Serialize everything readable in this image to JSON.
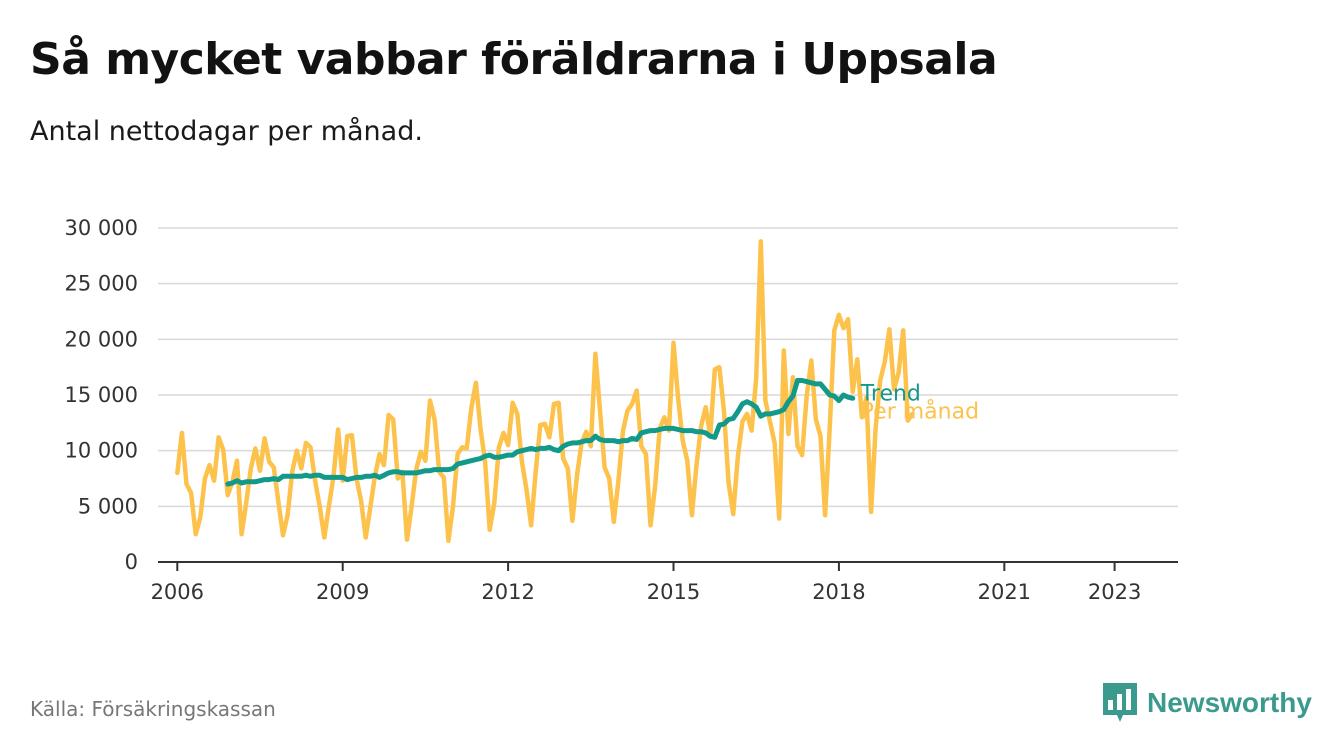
{
  "header": {
    "title": "Så mycket vabbar föräldrarna i Uppsala",
    "subtitle": "Antal nettodagar per månad."
  },
  "footer": {
    "source": "Källa: Försäkringskassan",
    "brand": "Newsworthy",
    "brand_icon": "bar-chart-speech-bubble-icon"
  },
  "colors": {
    "monthly": "#fcc24c",
    "trend": "#13998a",
    "grid": "#d9d9d9",
    "axis": "#333333",
    "brand": "#3b9a8e"
  },
  "chart_data": {
    "type": "line",
    "title": "Så mycket vabbar föräldrarna i Uppsala",
    "subtitle": "Antal nettodagar per månad.",
    "xlabel": "",
    "ylabel": "",
    "x_start": 2006.0,
    "x_step": 0.08333,
    "xlim": [
      2005.65,
      2024.15
    ],
    "ylim": [
      0,
      30000
    ],
    "y_ticks": [
      0,
      5000,
      10000,
      15000,
      20000,
      25000,
      30000
    ],
    "y_tick_labels": [
      "0",
      "5 000",
      "10 000",
      "15 000",
      "20 000",
      "25 000",
      "30 000"
    ],
    "x_ticks": [
      2006,
      2009,
      2012,
      2015,
      2018,
      2021,
      2023
    ],
    "x_tick_labels": [
      "2006",
      "2009",
      "2012",
      "2015",
      "2018",
      "2021",
      "2023"
    ],
    "grid": true,
    "series": [
      {
        "name": "Per månad",
        "values": [
          8000,
          11600,
          7000,
          6200,
          2500,
          4000,
          7500,
          8700,
          7300,
          11200,
          10100,
          6000,
          7200,
          9100,
          2500,
          5300,
          8400,
          10200,
          8200,
          11100,
          9000,
          8500,
          5400,
          2400,
          4200,
          8100,
          10000,
          8400,
          10700,
          10300,
          7300,
          5000,
          2200,
          5000,
          7700,
          11900,
          7300,
          11300,
          11400,
          7500,
          5500,
          2200,
          4900,
          7700,
          9700,
          8700,
          13200,
          12800,
          7500,
          8100,
          2000,
          5000,
          8300,
          9900,
          9100,
          14500,
          12800,
          8100,
          7600,
          1900,
          5000,
          9700,
          10300,
          10200,
          13800,
          16100,
          12000,
          9000,
          2900,
          5300,
          10300,
          11600,
          10500,
          14300,
          13300,
          9000,
          6500,
          3300,
          8100,
          12300,
          12400,
          11200,
          14200,
          14300,
          9300,
          8400,
          3700,
          7800,
          10700,
          11700,
          10400,
          18700,
          13600,
          8500,
          7500,
          3600,
          7300,
          11800,
          13600,
          14200,
          15400,
          10400,
          9700,
          3300,
          6800,
          12000,
          13000,
          11800,
          19700,
          14700,
          10900,
          9100,
          4200,
          8700,
          12200,
          13900,
          11300,
          17300,
          17500,
          13500,
          7100,
          4300,
          9400,
          12600,
          13300,
          11800,
          16500,
          28800,
          14500,
          12600,
          10700,
          3900,
          19000,
          11500,
          16600,
          10400,
          9600,
          14900,
          18100,
          12800,
          11300,
          4200,
          12000,
          20800,
          22200,
          21000,
          21800,
          15300,
          18200,
          13000,
          14800,
          4500,
          12000,
          16300,
          18000,
          20900,
          15500,
          17000,
          20800,
          12700,
          13300
        ]
      },
      {
        "name": "Trend",
        "start_index": 11,
        "values": [
          7000,
          7100,
          7300,
          7100,
          7200,
          7200,
          7200,
          7300,
          7400,
          7400,
          7500,
          7400,
          7700,
          7700,
          7700,
          7700,
          7700,
          7800,
          7700,
          7800,
          7800,
          7600,
          7600,
          7600,
          7600,
          7600,
          7400,
          7500,
          7600,
          7600,
          7700,
          7700,
          7800,
          7600,
          7800,
          8000,
          8100,
          8100,
          8000,
          8000,
          8000,
          8000,
          8100,
          8200,
          8200,
          8300,
          8300,
          8300,
          8300,
          8400,
          8800,
          8900,
          9000,
          9100,
          9200,
          9300,
          9500,
          9600,
          9400,
          9400,
          9500,
          9600,
          9600,
          9900,
          10000,
          10100,
          10200,
          10100,
          10200,
          10200,
          10300,
          10100,
          10000,
          10400,
          10600,
          10700,
          10700,
          10800,
          10900,
          10900,
          11300,
          11000,
          10900,
          10900,
          10900,
          10800,
          10900,
          10900,
          11100,
          11000,
          11600,
          11700,
          11800,
          11800,
          11900,
          12000,
          12000,
          12000,
          11900,
          11800,
          11800,
          11800,
          11700,
          11700,
          11600,
          11300,
          11200,
          12300,
          12400,
          12800,
          12900,
          13500,
          14200,
          14400,
          14200,
          13900,
          13100,
          13300,
          13300,
          13400,
          13500,
          13700,
          14400,
          14900,
          16300,
          16300,
          16200,
          16100,
          16000,
          16000,
          15500,
          15000,
          14900,
          14500,
          15000,
          14800,
          14700
        ]
      }
    ]
  }
}
